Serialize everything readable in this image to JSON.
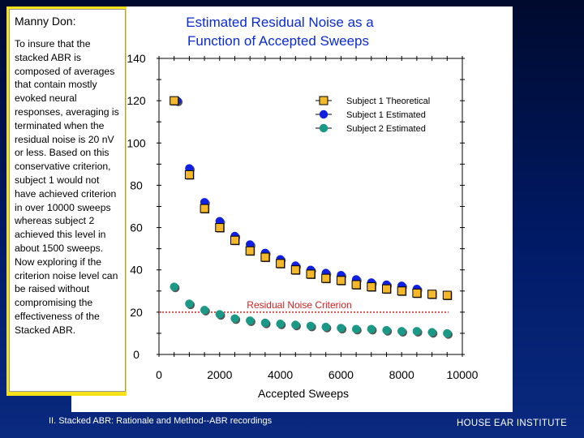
{
  "note": {
    "title": "Manny Don:",
    "body": "To insure that the stacked ABR is composed of averages that contain mostly evoked neural responses, averaging is terminated when the residual noise is 20 nV or less.  Based on this conservative criterion, subject 1 would not have achieved criterion in over 10000 sweeps whereas subject 2 achieved this level in about 1500 sweeps.  Now exploring if the criterion noise level can be raised without compromising the effectiveness of the Stacked ABR."
  },
  "footer": {
    "left": "II. Stacked ABR: Rationale and Method--ABR recordings",
    "right": "HOUSE  EAR  INSTITUTE"
  },
  "chart_data": {
    "type": "scatter",
    "title_lines": [
      "Estimated Residual Noise as a",
      "Function of Accepted Sweeps"
    ],
    "xlabel": "Accepted Sweeps",
    "ylabel": "",
    "xlim": [
      0,
      10000
    ],
    "ylim": [
      0,
      140
    ],
    "xticks": [
      0,
      2000,
      4000,
      6000,
      8000,
      10000
    ],
    "yticks": [
      0,
      20,
      40,
      60,
      80,
      100,
      120,
      140
    ],
    "legend_position": "top-right",
    "criterion": {
      "label": "Residual Noise Criterion",
      "value": 20,
      "color": "#d81e1e"
    },
    "series": [
      {
        "name": "Subject 1 Theoretical",
        "marker": "square",
        "color": "#f4b82a",
        "x": [
          500,
          1000,
          1500,
          2000,
          2500,
          3000,
          3500,
          4000,
          4500,
          5000,
          5500,
          6000,
          6500,
          7000,
          7500,
          8000,
          8500,
          9000,
          9500
        ],
        "y": [
          120,
          85,
          69,
          60,
          54,
          49,
          46,
          43,
          40,
          38,
          36,
          35,
          33,
          32,
          31,
          30,
          29,
          28.5,
          28
        ]
      },
      {
        "name": "Subject 1 Estimated",
        "marker": "circle",
        "color": "#1020e0",
        "x": [
          600,
          1000,
          1500,
          2000,
          2500,
          3000,
          3500,
          4000,
          4500,
          5000,
          5500,
          6000,
          6500,
          7000,
          7500,
          8000,
          8500
        ],
        "y": [
          120,
          88,
          72,
          63,
          56,
          52,
          48,
          45,
          42,
          40,
          38.5,
          37.5,
          35.5,
          34,
          33,
          32.5,
          31
        ]
      },
      {
        "name": "Subject 2 Estimated",
        "marker": "circle",
        "color": "#1a9a86",
        "x": [
          500,
          1000,
          1500,
          2000,
          2500,
          3000,
          3500,
          4000,
          4500,
          5000,
          5500,
          6000,
          6500,
          7000,
          7500,
          8000,
          8500,
          9000,
          9500
        ],
        "y": [
          32,
          24,
          21,
          19,
          17,
          16,
          15,
          14.5,
          14,
          13.5,
          13,
          12.5,
          12,
          12,
          11.5,
          11,
          11,
          10.5,
          10
        ]
      }
    ]
  }
}
